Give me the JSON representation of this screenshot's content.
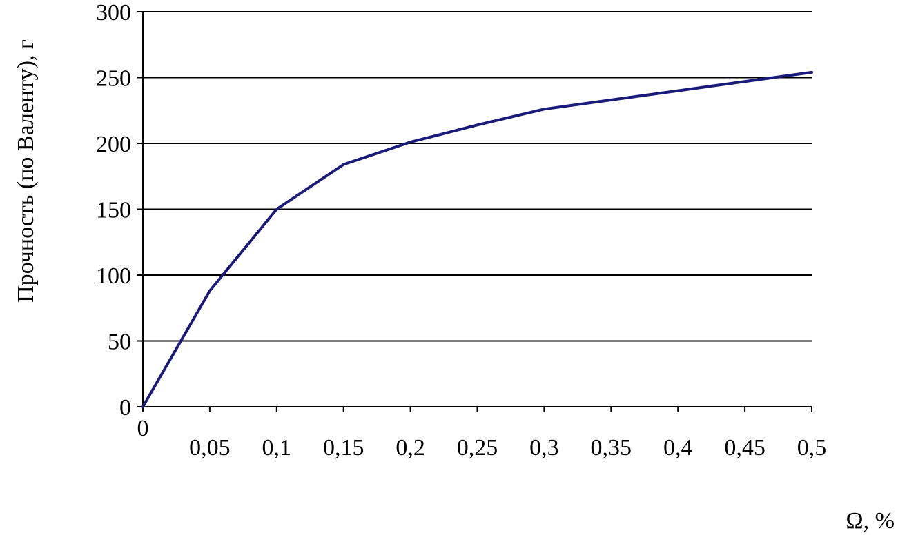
{
  "chart_data": {
    "type": "line",
    "title": "",
    "xlabel": "Ω, %",
    "ylabel": "Прочность (по Валенту), г",
    "x_tick_labels": [
      "0",
      "0,05",
      "0,1",
      "0,15",
      "0,2",
      "0,25",
      "0,3",
      "0,35",
      "0,4",
      "0,45",
      "0,5"
    ],
    "y_tick_labels": [
      "0",
      "50",
      "100",
      "150",
      "200",
      "250",
      "300"
    ],
    "x_ticks": [
      0,
      0.05,
      0.1,
      0.15,
      0.2,
      0.25,
      0.3,
      0.35,
      0.4,
      0.45,
      0.5
    ],
    "y_ticks": [
      0,
      50,
      100,
      150,
      200,
      250,
      300
    ],
    "xlim": [
      0,
      0.5
    ],
    "ylim": [
      0,
      300
    ],
    "grid": "horizontal",
    "legend": "none",
    "series": [
      {
        "color": "#1a1a7a",
        "x": [
          0,
          0.05,
          0.1,
          0.15,
          0.2,
          0.25,
          0.3,
          0.4,
          0.5
        ],
        "y": [
          0,
          88,
          150,
          184,
          201,
          214,
          226,
          240,
          254
        ]
      }
    ]
  }
}
